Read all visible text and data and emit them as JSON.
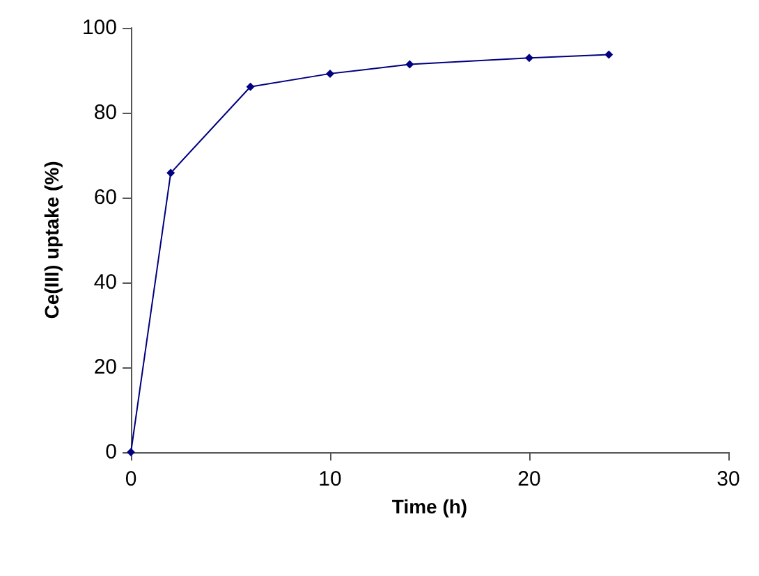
{
  "chart_data": {
    "type": "line",
    "xlabel": "Time (h)",
    "ylabel": "Ce(III) uptake (%)",
    "x": [
      0,
      2,
      6,
      10,
      14,
      20,
      24
    ],
    "series": [
      {
        "color": "#000080",
        "values": [
          0,
          65.8,
          86.1,
          89.2,
          91.4,
          92.9,
          93.7
        ]
      }
    ],
    "xlim": [
      0,
      30
    ],
    "xticks": [
      0,
      10,
      20,
      30
    ],
    "ylim": [
      0,
      100
    ],
    "yticks": [
      0,
      20,
      40,
      60,
      80,
      100
    ],
    "grid": false,
    "marker": "diamond",
    "line_style": "solid"
  }
}
